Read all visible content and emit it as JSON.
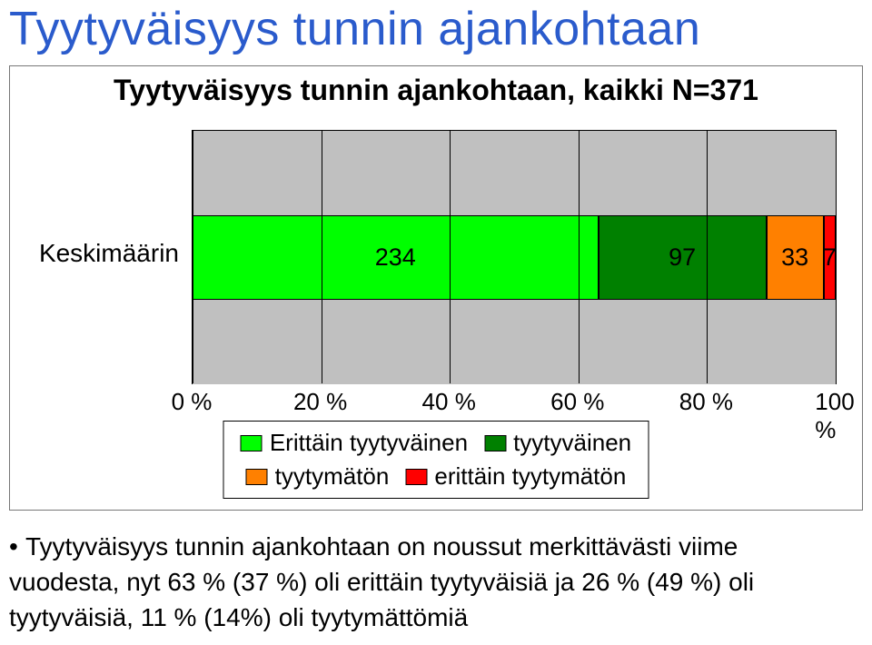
{
  "title": "Tyytyväisyys tunnin ajankohtaan",
  "title_color": "#2a5bcc",
  "title_fontsize": 52,
  "chart": {
    "type": "stacked-bar-100",
    "title": "Tyytyväisyys tunnin ajankohtaan, kaikki N=371",
    "title_fontsize": 32,
    "title_weight": "bold",
    "plot_background": "#c0c0c0",
    "border_color": "#000000",
    "category_label": "Keskimäärin",
    "category_fontsize": 28,
    "xaxis": {
      "ticks": [
        "0 %",
        "20 %",
        "40 %",
        "60 %",
        "80 %",
        "100 %"
      ],
      "positions_pct": [
        0,
        20,
        40,
        60,
        80,
        100
      ],
      "fontsize": 26
    },
    "segments": [
      {
        "label": "234",
        "value": 234,
        "color": "#00ff00"
      },
      {
        "label": "97",
        "value": 97,
        "color": "#008000"
      },
      {
        "label": "33",
        "value": 33,
        "color": "#ff8000"
      },
      {
        "label": "7",
        "value": 7,
        "color": "#ff0000"
      }
    ],
    "data_label_color": "#000000",
    "data_label_fontsize": 27,
    "legend": {
      "items": [
        {
          "text": "Erittäin tyytyväinen",
          "color": "#00ff00"
        },
        {
          "text": "tyytyväinen",
          "color": "#008000"
        },
        {
          "text": "tyytymätön",
          "color": "#ff8000"
        },
        {
          "text": "erittäin tyytymätön",
          "color": "#ff0000"
        }
      ],
      "fontsize": 26
    }
  },
  "bullet": {
    "text": "Tyytyväisyys tunnin ajankohtaan on noussut merkittävästi viime vuodesta, nyt 63 % (37 %) oli erittäin tyytyväisiä ja 26 % (49 %) oli tyytyväisiä, 11 % (14%) oli tyytymättömiä",
    "fontsize": 28
  }
}
